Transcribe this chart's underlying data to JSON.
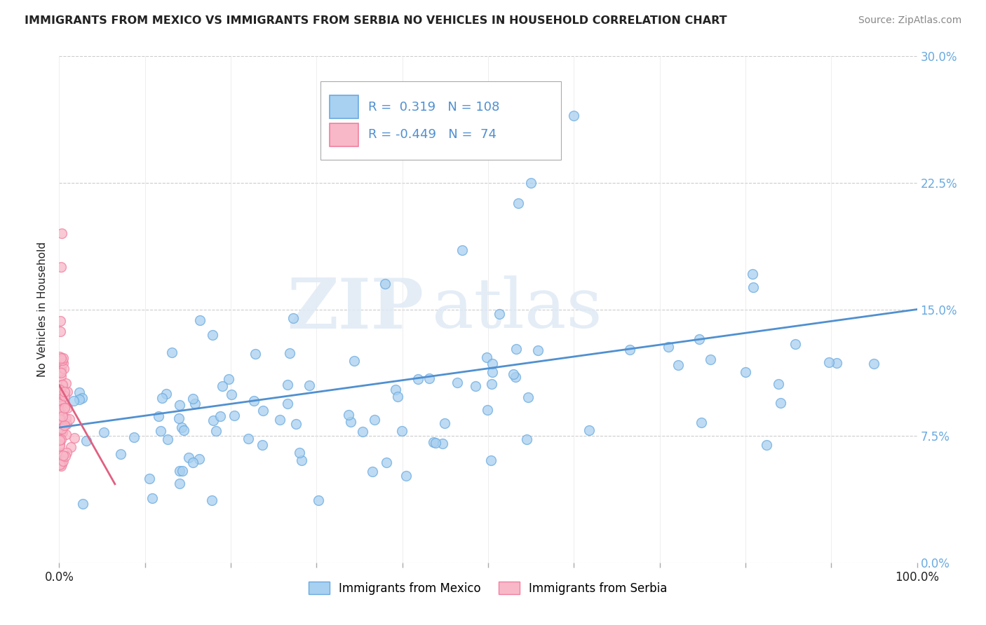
{
  "title": "IMMIGRANTS FROM MEXICO VS IMMIGRANTS FROM SERBIA NO VEHICLES IN HOUSEHOLD CORRELATION CHART",
  "source": "Source: ZipAtlas.com",
  "ylabel": "No Vehicles in Household",
  "x_min": 0.0,
  "x_max": 1.0,
  "y_min": 0.0,
  "y_max": 0.3,
  "x_tick_positions": [
    0.0,
    0.1,
    0.2,
    0.3,
    0.4,
    0.5,
    0.6,
    0.7,
    0.8,
    0.9,
    1.0
  ],
  "x_tick_labels_shown": {
    "0.0": "0.0%",
    "1.0": "100.0%"
  },
  "y_ticks": [
    0.0,
    0.075,
    0.15,
    0.225,
    0.3
  ],
  "y_tick_labels": [
    "0.0%",
    "7.5%",
    "15.0%",
    "22.5%",
    "30.0%"
  ],
  "mexico_r": 0.319,
  "mexico_n": 108,
  "serbia_r": -0.449,
  "serbia_n": 74,
  "mexico_color": "#A8D0F0",
  "serbia_color": "#F8B8C8",
  "mexico_edge_color": "#6AAAE0",
  "serbia_edge_color": "#F080A0",
  "mexico_line_color": "#5090D0",
  "serbia_line_color": "#E06080",
  "right_tick_color": "#6AAAE0",
  "legend_label_mexico": "Immigrants from Mexico",
  "legend_label_serbia": "Immigrants from Serbia",
  "watermark_zip": "ZIP",
  "watermark_atlas": "atlas",
  "background_color": "#FFFFFF",
  "grid_color": "#CCCCCC",
  "title_color": "#222222",
  "source_color": "#888888",
  "ylabel_color": "#222222"
}
